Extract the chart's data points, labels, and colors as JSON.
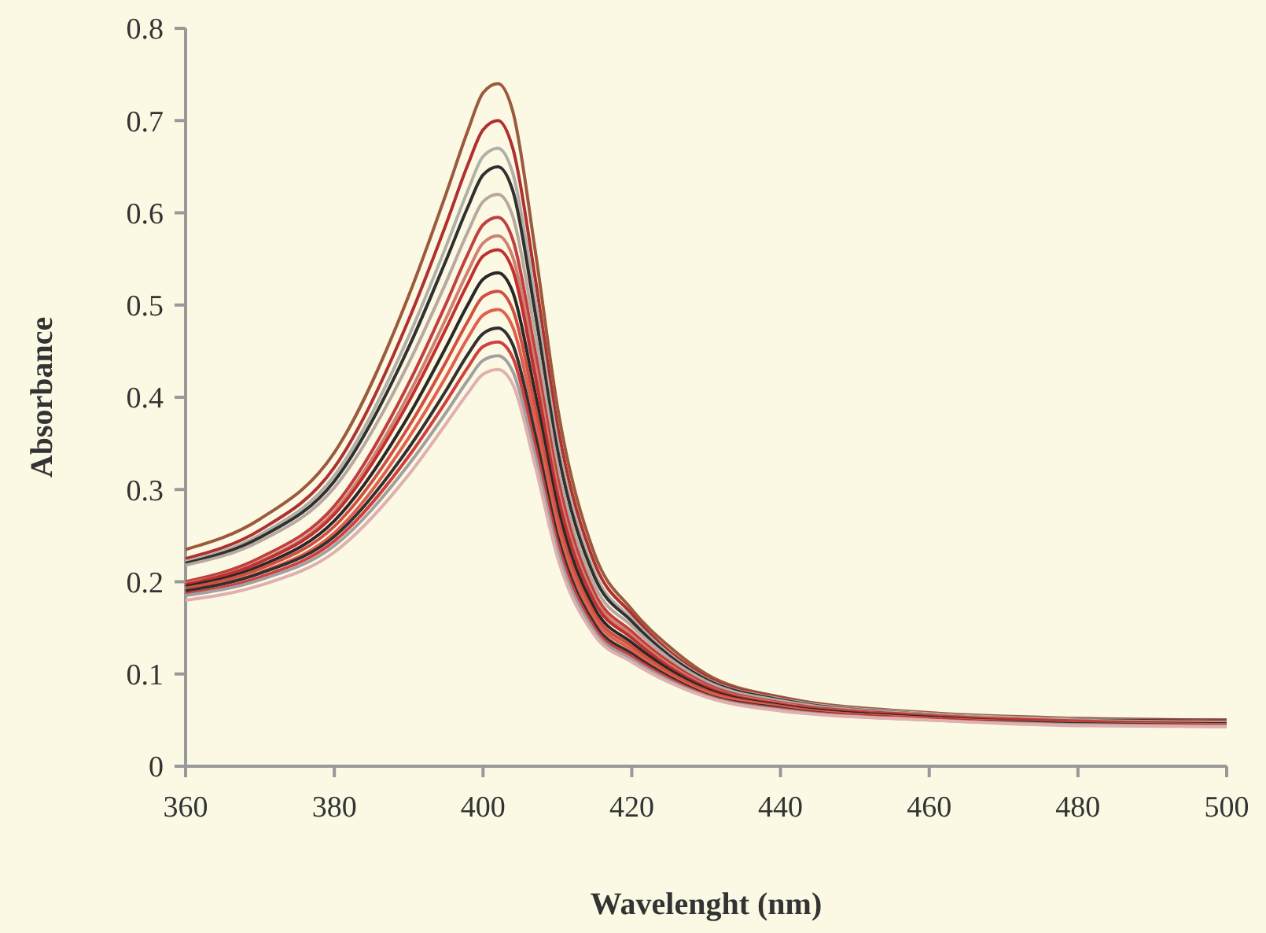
{
  "chart_data": {
    "type": "line",
    "xlabel": "Wavelenght (nm)",
    "ylabel": "Absorbance",
    "x": [
      360,
      370,
      380,
      390,
      395,
      398,
      400,
      402,
      404,
      407,
      410,
      415,
      420,
      425,
      430,
      440,
      460,
      480,
      500
    ],
    "xlim": [
      360,
      500
    ],
    "xticks": [
      360,
      380,
      400,
      420,
      440,
      460,
      480,
      500
    ],
    "ylim": [
      0,
      0.8
    ],
    "yticks": [
      0,
      0.1,
      0.2,
      0.3,
      0.4,
      0.5,
      0.6,
      0.7,
      0.8
    ],
    "grid": false,
    "marker": "none",
    "line_style": "solid",
    "series": [
      {
        "color": "#9c5a3c",
        "values": [
          0.235,
          0.268,
          0.34,
          0.51,
          0.62,
          0.69,
          0.73,
          0.74,
          0.71,
          0.56,
          0.39,
          0.23,
          0.17,
          0.13,
          0.1,
          0.075,
          0.058,
          0.052,
          0.05
        ]
      },
      {
        "color": "#b03030",
        "values": [
          0.225,
          0.256,
          0.324,
          0.484,
          0.587,
          0.653,
          0.69,
          0.7,
          0.67,
          0.53,
          0.37,
          0.22,
          0.165,
          0.125,
          0.097,
          0.074,
          0.057,
          0.051,
          0.05
        ]
      },
      {
        "color": "#b0b0a8",
        "values": [
          0.222,
          0.251,
          0.315,
          0.466,
          0.563,
          0.625,
          0.661,
          0.67,
          0.643,
          0.507,
          0.353,
          0.21,
          0.16,
          0.122,
          0.095,
          0.073,
          0.057,
          0.051,
          0.049
        ]
      },
      {
        "color": "#303030",
        "values": [
          0.22,
          0.248,
          0.309,
          0.454,
          0.548,
          0.607,
          0.641,
          0.65,
          0.624,
          0.492,
          0.343,
          0.205,
          0.157,
          0.12,
          0.094,
          0.072,
          0.056,
          0.05,
          0.049
        ]
      },
      {
        "color": "#b8a8a0",
        "values": [
          0.218,
          0.244,
          0.302,
          0.437,
          0.524,
          0.58,
          0.612,
          0.62,
          0.596,
          0.47,
          0.327,
          0.196,
          0.152,
          0.117,
          0.092,
          0.071,
          0.056,
          0.05,
          0.048
        ]
      },
      {
        "color": "#c04040",
        "values": [
          0.2,
          0.226,
          0.282,
          0.415,
          0.501,
          0.556,
          0.587,
          0.595,
          0.571,
          0.45,
          0.314,
          0.188,
          0.146,
          0.113,
          0.089,
          0.069,
          0.055,
          0.049,
          0.047
        ]
      },
      {
        "color": "#d08070",
        "values": [
          0.198,
          0.222,
          0.276,
          0.403,
          0.485,
          0.537,
          0.567,
          0.575,
          0.552,
          0.435,
          0.303,
          0.182,
          0.142,
          0.11,
          0.087,
          0.068,
          0.054,
          0.048,
          0.047
        ]
      },
      {
        "color": "#c03030",
        "values": [
          0.197,
          0.221,
          0.273,
          0.395,
          0.474,
          0.524,
          0.553,
          0.56,
          0.538,
          0.424,
          0.295,
          0.178,
          0.139,
          0.108,
          0.086,
          0.067,
          0.054,
          0.048,
          0.046
        ]
      },
      {
        "color": "#282828",
        "values": [
          0.195,
          0.217,
          0.266,
          0.38,
          0.454,
          0.501,
          0.528,
          0.535,
          0.514,
          0.405,
          0.282,
          0.171,
          0.134,
          0.105,
          0.084,
          0.066,
          0.053,
          0.047,
          0.046
        ]
      },
      {
        "color": "#d05040",
        "values": [
          0.193,
          0.214,
          0.26,
          0.368,
          0.438,
          0.483,
          0.509,
          0.515,
          0.495,
          0.39,
          0.271,
          0.165,
          0.13,
          0.102,
          0.082,
          0.065,
          0.052,
          0.047,
          0.045
        ]
      },
      {
        "color": "#e06050",
        "values": [
          0.19,
          0.21,
          0.253,
          0.356,
          0.422,
          0.465,
          0.489,
          0.495,
          0.476,
          0.375,
          0.261,
          0.16,
          0.126,
          0.099,
          0.08,
          0.064,
          0.052,
          0.046,
          0.045
        ]
      },
      {
        "color": "#303030",
        "values": [
          0.19,
          0.209,
          0.249,
          0.345,
          0.407,
          0.447,
          0.469,
          0.475,
          0.457,
          0.36,
          0.25,
          0.154,
          0.122,
          0.097,
          0.078,
          0.063,
          0.051,
          0.046,
          0.044
        ]
      },
      {
        "color": "#d04040",
        "values": [
          0.187,
          0.205,
          0.244,
          0.336,
          0.395,
          0.433,
          0.455,
          0.46,
          0.443,
          0.348,
          0.243,
          0.15,
          0.119,
          0.095,
          0.077,
          0.062,
          0.051,
          0.045,
          0.044
        ]
      },
      {
        "color": "#a0a0a0",
        "values": [
          0.185,
          0.202,
          0.239,
          0.327,
          0.383,
          0.419,
          0.44,
          0.445,
          0.428,
          0.337,
          0.235,
          0.146,
          0.116,
          0.093,
          0.076,
          0.061,
          0.05,
          0.045,
          0.043
        ]
      },
      {
        "color": "#e0b0b0",
        "values": [
          0.18,
          0.196,
          0.232,
          0.316,
          0.371,
          0.405,
          0.425,
          0.43,
          0.414,
          0.326,
          0.227,
          0.142,
          0.113,
          0.091,
          0.075,
          0.06,
          0.05,
          0.044,
          0.043
        ]
      }
    ]
  }
}
